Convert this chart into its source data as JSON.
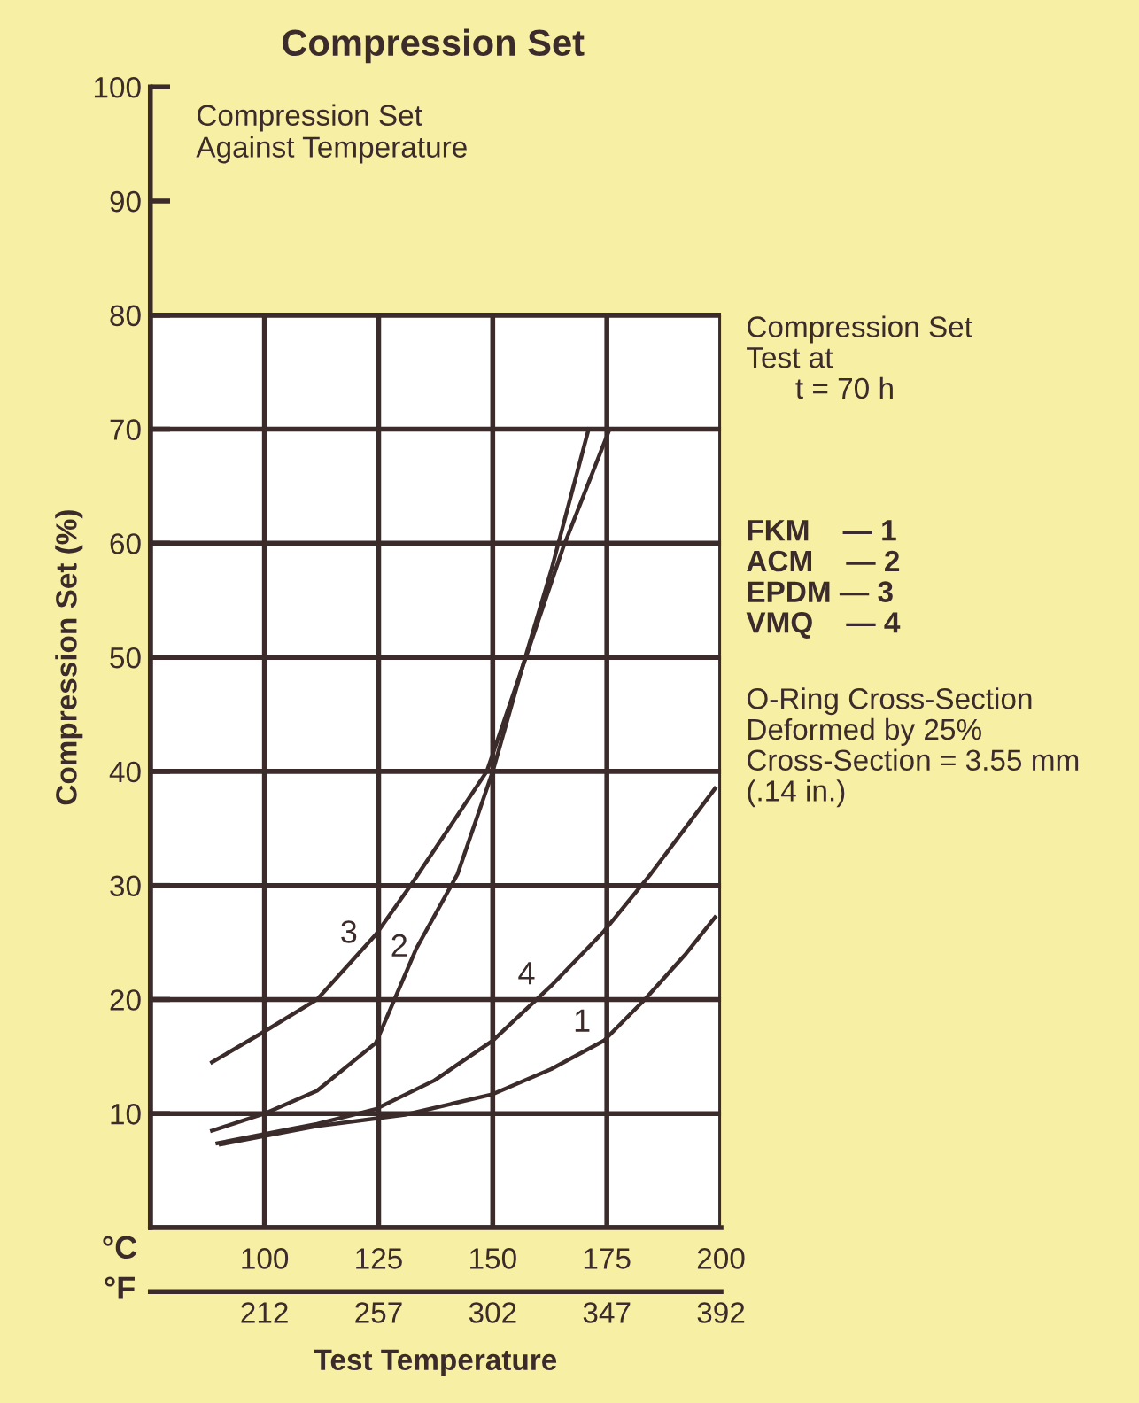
{
  "chart_data": {
    "type": "line",
    "title": "Compression Set",
    "subtitle": "Compression Set\nAgainst Temperature",
    "xlabel": "Test Temperature",
    "ylabel": "Compression Set (%)",
    "xlim": [
      75,
      200
    ],
    "xticks": [
      100,
      125,
      150,
      175,
      200
    ],
    "x2lim": [
      167,
      392
    ],
    "x2ticks": [
      212,
      257,
      302,
      347,
      392
    ],
    "ylim": [
      0,
      100
    ],
    "yticks": [
      10,
      20,
      30,
      40,
      50,
      60,
      70,
      80,
      90,
      100
    ],
    "grid": true,
    "marker": "none",
    "line_style": "solid",
    "bands": [
      {
        "axis": "y",
        "from": 0,
        "to": 80,
        "color": "#ffffff"
      }
    ],
    "series": [
      {
        "name": "1",
        "color": "#3b2b2b",
        "x": [
          90.4,
          111.5,
          130.8,
          150,
          162.8,
          174.4,
          183.3,
          192.3,
          198.7
        ],
        "values": [
          7.3,
          8.9,
          9.9,
          11.7,
          13.9,
          16.4,
          20,
          24,
          27.2
        ]
      },
      {
        "name": "2",
        "color": "#3b2b2b",
        "x": [
          88.5,
          100,
          111.5,
          124.4,
          133.3,
          142.3,
          150,
          156.4,
          165.4,
          175.6
        ],
        "values": [
          8.5,
          10,
          12,
          16.2,
          24.5,
          31,
          40,
          49,
          59.6,
          70
        ]
      },
      {
        "name": "3",
        "color": "#3b2b2b",
        "x": [
          88.5,
          100,
          111.5,
          124.4,
          132,
          148.7,
          156.4,
          162.8,
          171
        ],
        "values": [
          14.5,
          17.2,
          20,
          25.7,
          30,
          40,
          49,
          57.6,
          70
        ]
      },
      {
        "name": "4",
        "color": "#3b2b2b",
        "x": [
          89.7,
          111.5,
          124.4,
          137.2,
          150,
          162.8,
          174.4,
          184.6,
          198.7
        ],
        "values": [
          7.4,
          9.1,
          10.4,
          12.9,
          16.4,
          21.2,
          26,
          31,
          38.5
        ]
      }
    ],
    "annotations": [
      "Compression Set\nTest at\n      t = 70 h",
      "FKM    — 1\nACM    — 2\nEPDM — 3\nVMQ    — 4",
      "O-Ring Cross-Section\nDeformed by 25%\nCross-Section = 3.55 mm\n(.14 in.)",
      "°C",
      "°F"
    ]
  }
}
